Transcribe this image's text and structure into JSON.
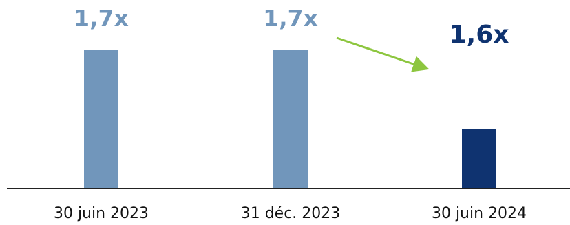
{
  "chart_data": {
    "type": "bar",
    "categories": [
      "30 juin 2023",
      "31 déc. 2023",
      "30 juin 2024"
    ],
    "values": [
      1.7,
      1.7,
      1.6
    ],
    "value_labels": [
      "1,7x",
      "1,7x",
      "1,6x"
    ],
    "title": "",
    "xlabel": "",
    "ylabel": "",
    "ylim": [
      0,
      2.0
    ],
    "grid": false,
    "legend": "none",
    "colors": {
      "past": "#7196bb",
      "current": "#0f3370",
      "label_past": "#7196bb",
      "label_current": "#0f3370",
      "arrow": "#8dc63f",
      "axis": "#222222"
    },
    "highlight_index": 2,
    "annotation": {
      "type": "arrow",
      "from_category": 1,
      "to_category": 2
    }
  }
}
